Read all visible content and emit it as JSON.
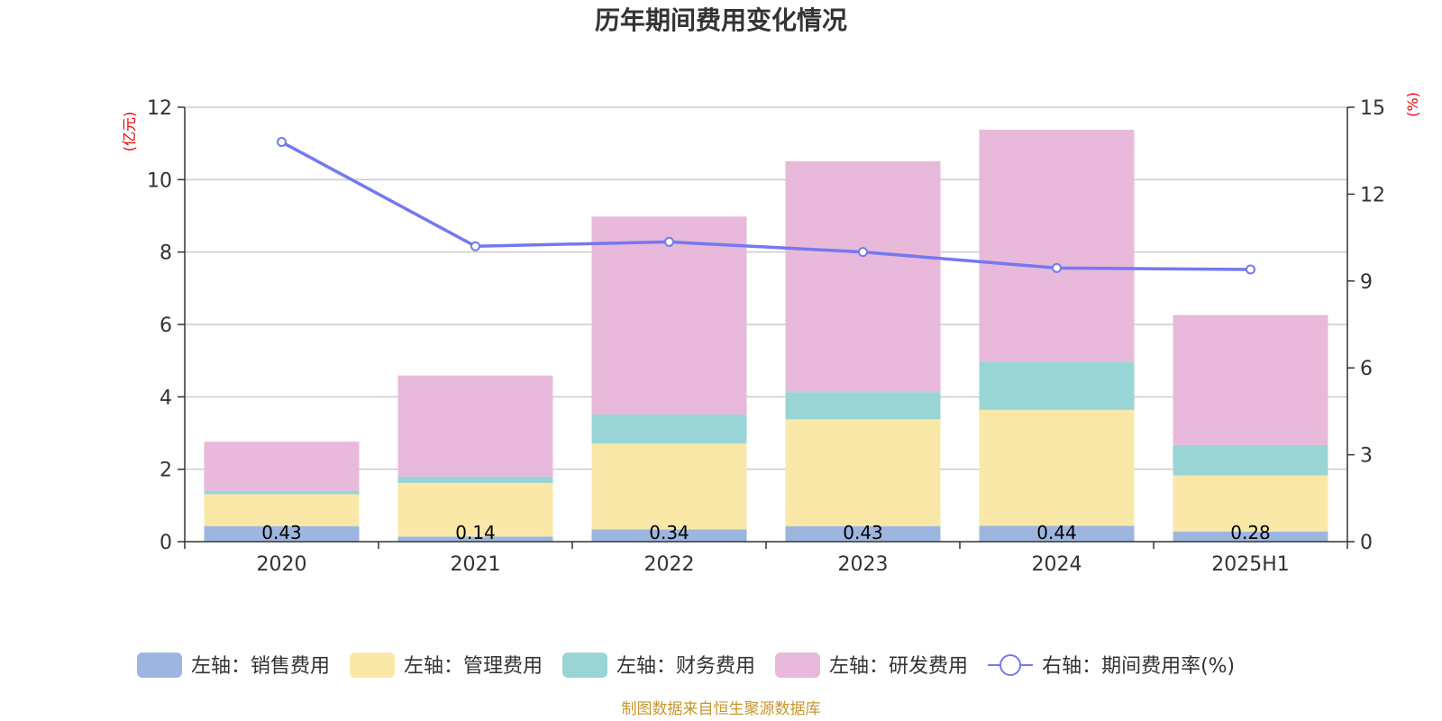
{
  "chart_data": {
    "type": "bar",
    "stacked": true,
    "title": "历年期间费用变化情况",
    "categories": [
      "2020",
      "2021",
      "2022",
      "2023",
      "2024",
      "2025H1"
    ],
    "y_left": {
      "unit": "(亿元)",
      "range": [
        0,
        12
      ],
      "ticks": [
        "0",
        "2",
        "4",
        "6",
        "8",
        "10",
        "12"
      ]
    },
    "y_right": {
      "unit": "(%)",
      "range": [
        0,
        15
      ],
      "ticks": [
        "0",
        "3",
        "6",
        "9",
        "12",
        "15"
      ]
    },
    "series": [
      {
        "name": "左轴：销售费用",
        "axis": "left",
        "type": "bar",
        "color": "#9db6e0",
        "values": [
          0.43,
          0.14,
          0.34,
          0.43,
          0.44,
          0.28
        ],
        "labels": [
          "0.43",
          "0.14",
          "0.34",
          "0.43",
          "0.44",
          "0.28"
        ]
      },
      {
        "name": "左轴：管理费用",
        "axis": "left",
        "type": "bar",
        "color": "#f9e8a8",
        "values": [
          0.88,
          1.48,
          2.37,
          2.95,
          3.2,
          1.55
        ]
      },
      {
        "name": "左轴：财务费用",
        "axis": "left",
        "type": "bar",
        "color": "#99d5d5",
        "values": [
          0.1,
          0.18,
          0.8,
          0.75,
          1.33,
          0.84
        ]
      },
      {
        "name": "左轴：研发费用",
        "axis": "left",
        "type": "bar",
        "color": "#e8b9da",
        "values": [
          1.35,
          2.79,
          5.47,
          6.38,
          6.41,
          3.59
        ]
      },
      {
        "name": "右轴：期间费用率(%)",
        "axis": "right",
        "type": "line",
        "color": "#7479ef",
        "values": [
          13.8,
          10.2,
          10.35,
          10.0,
          9.45,
          9.4
        ]
      }
    ],
    "grid": true,
    "legend_position": "bottom"
  },
  "source_note": "制图数据来自恒生聚源数据库"
}
